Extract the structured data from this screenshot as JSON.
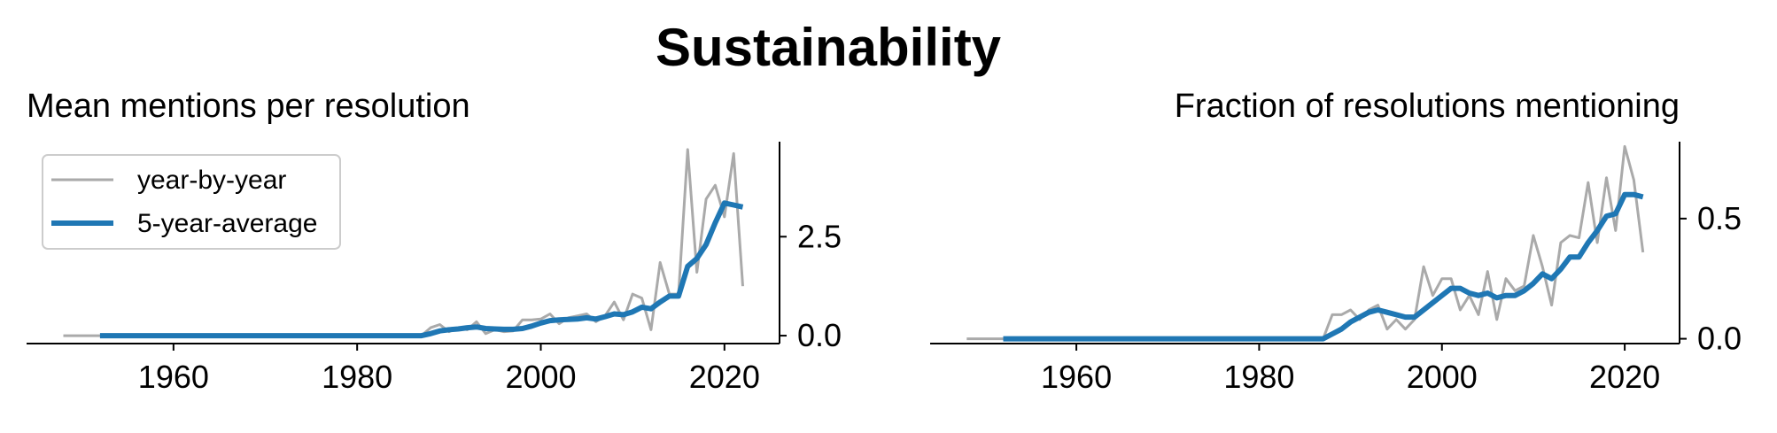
{
  "figure": {
    "title": "Sustainability"
  },
  "chart_data": [
    {
      "type": "line",
      "title": "Mean mentions per resolution",
      "xlabel": "",
      "ylabel": "",
      "xlim": [
        1944,
        2026
      ],
      "ylim": [
        -0.2,
        4.9
      ],
      "xticks": [
        1960,
        1980,
        2000,
        2020
      ],
      "xtick_labels": [
        "1960",
        "1980",
        "2000",
        "2020"
      ],
      "yticks": [
        0.0,
        2.5
      ],
      "ytick_labels": [
        "0.0",
        "2.5"
      ],
      "y_axis_side": "right",
      "grid": false,
      "legend": {
        "position": "top-left",
        "entries": [
          "year-by-year",
          "5-year-average"
        ]
      },
      "series": [
        {
          "name": "year-by-year",
          "color": "#aaaaaa",
          "x": [
            1948,
            1952,
            1960,
            1970,
            1980,
            1987,
            1988,
            1989,
            1990,
            1991,
            1992,
            1993,
            1994,
            1995,
            1996,
            1997,
            1998,
            1999,
            2000,
            2001,
            2002,
            2003,
            2004,
            2005,
            2006,
            2007,
            2008,
            2009,
            2010,
            2011,
            2012,
            2013,
            2014,
            2015,
            2016,
            2017,
            2018,
            2019,
            2020,
            2021,
            2022
          ],
          "y": [
            0,
            0,
            0,
            0,
            0,
            0,
            0.2,
            0.28,
            0.1,
            0.2,
            0.15,
            0.35,
            0.05,
            0.15,
            0.1,
            0.12,
            0.4,
            0.4,
            0.42,
            0.55,
            0.3,
            0.45,
            0.5,
            0.55,
            0.35,
            0.5,
            0.85,
            0.4,
            1.05,
            0.95,
            0.15,
            1.85,
            1.05,
            1.05,
            4.7,
            1.6,
            3.45,
            3.8,
            3.0,
            4.6,
            1.25
          ]
        },
        {
          "name": "5-year-average",
          "color": "#1f77b4",
          "x": [
            1952,
            1960,
            1970,
            1980,
            1987,
            1988,
            1989,
            1990,
            1991,
            1992,
            1993,
            1994,
            1995,
            1996,
            1997,
            1998,
            1999,
            2000,
            2001,
            2002,
            2003,
            2004,
            2005,
            2006,
            2007,
            2008,
            2009,
            2010,
            2011,
            2012,
            2013,
            2014,
            2015,
            2016,
            2017,
            2018,
            2019,
            2020,
            2021,
            2022
          ],
          "y": [
            0,
            0,
            0,
            0,
            0,
            0.05,
            0.12,
            0.15,
            0.17,
            0.2,
            0.22,
            0.18,
            0.17,
            0.16,
            0.16,
            0.18,
            0.24,
            0.32,
            0.38,
            0.4,
            0.41,
            0.42,
            0.45,
            0.42,
            0.48,
            0.55,
            0.53,
            0.6,
            0.72,
            0.68,
            0.85,
            1.0,
            1.0,
            1.75,
            1.95,
            2.3,
            2.85,
            3.35,
            3.3,
            3.25
          ]
        }
      ]
    },
    {
      "type": "line",
      "title": "Fraction of resolutions mentioning",
      "xlabel": "",
      "ylabel": "",
      "xlim": [
        1944,
        2026
      ],
      "ylim": [
        -0.02,
        0.82
      ],
      "xticks": [
        1960,
        1980,
        2000,
        2020
      ],
      "xtick_labels": [
        "1960",
        "1980",
        "2000",
        "2020"
      ],
      "yticks": [
        0.0,
        0.5
      ],
      "ytick_labels": [
        "0.0",
        "0.5"
      ],
      "y_axis_side": "right",
      "grid": false,
      "series": [
        {
          "name": "year-by-year",
          "color": "#aaaaaa",
          "x": [
            1948,
            1952,
            1960,
            1970,
            1980,
            1987,
            1988,
            1989,
            1990,
            1991,
            1992,
            1993,
            1994,
            1995,
            1996,
            1997,
            1998,
            1999,
            2000,
            2001,
            2002,
            2003,
            2004,
            2005,
            2006,
            2007,
            2008,
            2009,
            2010,
            2011,
            2012,
            2013,
            2014,
            2015,
            2016,
            2017,
            2018,
            2019,
            2020,
            2021,
            2022
          ],
          "y": [
            0,
            0,
            0,
            0,
            0,
            0,
            0.1,
            0.1,
            0.12,
            0.08,
            0.12,
            0.14,
            0.04,
            0.08,
            0.04,
            0.08,
            0.3,
            0.18,
            0.25,
            0.25,
            0.12,
            0.18,
            0.1,
            0.28,
            0.08,
            0.25,
            0.2,
            0.22,
            0.43,
            0.3,
            0.14,
            0.4,
            0.43,
            0.42,
            0.65,
            0.4,
            0.67,
            0.45,
            0.8,
            0.66,
            0.36
          ]
        },
        {
          "name": "5-year-average",
          "color": "#1f77b4",
          "x": [
            1952,
            1960,
            1970,
            1980,
            1987,
            1988,
            1989,
            1990,
            1991,
            1992,
            1993,
            1994,
            1995,
            1996,
            1997,
            1998,
            1999,
            2000,
            2001,
            2002,
            2003,
            2004,
            2005,
            2006,
            2007,
            2008,
            2009,
            2010,
            2011,
            2012,
            2013,
            2014,
            2015,
            2016,
            2017,
            2018,
            2019,
            2020,
            2021,
            2022
          ],
          "y": [
            0,
            0,
            0,
            0,
            0,
            0.02,
            0.04,
            0.07,
            0.09,
            0.11,
            0.12,
            0.11,
            0.1,
            0.09,
            0.09,
            0.12,
            0.15,
            0.18,
            0.21,
            0.21,
            0.19,
            0.18,
            0.19,
            0.17,
            0.18,
            0.18,
            0.2,
            0.23,
            0.27,
            0.25,
            0.29,
            0.34,
            0.34,
            0.4,
            0.45,
            0.51,
            0.52,
            0.6,
            0.6,
            0.59
          ]
        }
      ]
    }
  ]
}
